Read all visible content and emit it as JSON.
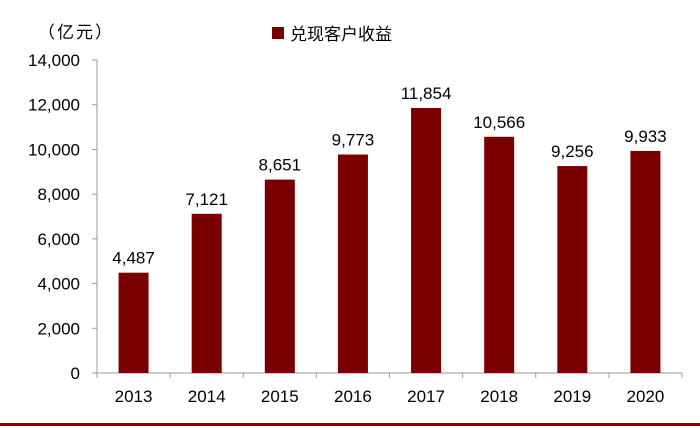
{
  "unit_label": "（亿元）",
  "legend_label": "兑现客户收益",
  "colors": {
    "bar": "#7a0000",
    "axis": "#999999",
    "rule": "#8b0000",
    "text": "#000000"
  },
  "chart_data": {
    "type": "bar",
    "categories": [
      "2013",
      "2014",
      "2015",
      "2016",
      "2017",
      "2018",
      "2019",
      "2020"
    ],
    "series": [
      {
        "name": "兑现客户收益",
        "values": [
          4487,
          7121,
          8651,
          9773,
          11854,
          10566,
          9256,
          9933
        ]
      }
    ],
    "data_labels": [
      "4,487",
      "7,121",
      "8,651",
      "9,773",
      "11,854",
      "10,566",
      "9,256",
      "9,933"
    ],
    "yticks": [
      "0",
      "2,000",
      "4,000",
      "6,000",
      "8,000",
      "10,000",
      "12,000",
      "14,000"
    ],
    "ylim": [
      0,
      14000
    ],
    "grid": false,
    "legend_position": "top-center"
  }
}
